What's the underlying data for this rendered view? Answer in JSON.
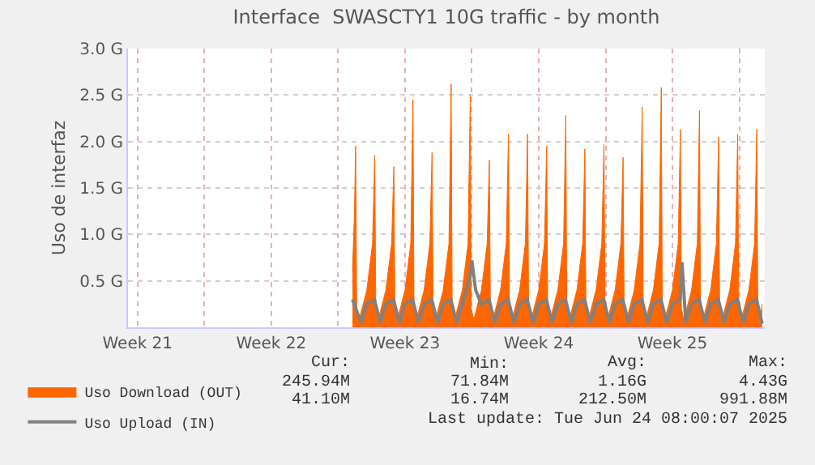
{
  "chart_data": {
    "type": "area",
    "title": "Interface  SWASCTY1 10G traffic - by month",
    "ylabel": "Uso de interfaz",
    "xlim": [
      "2025-05-22T00:00",
      "2025-06-24T08:00"
    ],
    "xticks": [
      {
        "value": "2025-05-22T12:00",
        "label": "Week 21"
      },
      {
        "value": "2025-05-26",
        "label": null
      },
      {
        "value": "2025-05-29T12:00",
        "label": "Week 22"
      },
      {
        "value": "2025-06-02",
        "label": null
      },
      {
        "value": "2025-06-05T12:00",
        "label": "Week 23"
      },
      {
        "value": "2025-06-09",
        "label": null
      },
      {
        "value": "2025-06-12T12:00",
        "label": "Week 24"
      },
      {
        "value": "2025-06-16",
        "label": null
      },
      {
        "value": "2025-06-19T12:00",
        "label": "Week 25"
      },
      {
        "value": "2025-06-23",
        "label": null
      }
    ],
    "ylim": [
      0,
      3.0
    ],
    "yticks": [
      {
        "value": 0.5,
        "label": "0.5 G"
      },
      {
        "value": 1.0,
        "label": "1.0 G"
      },
      {
        "value": 1.5,
        "label": "1.5 G"
      },
      {
        "value": 2.0,
        "label": "2.0 G"
      },
      {
        "value": 2.5,
        "label": "2.5 G"
      },
      {
        "value": 3.0,
        "label": "3.0 G"
      }
    ],
    "grid": true,
    "legend": "bottom left",
    "series": [
      {
        "name": "Uso Download (OUT)",
        "color": "#ff6600",
        "x": [
          "2025-06-02T18:00",
          "2025-06-02T20:24",
          "2025-06-02T22:00",
          "2025-06-02T23:17",
          "2025-06-03T02:24",
          "2025-06-03T12:00",
          "2025-06-03T19:12",
          "2025-06-03T22:00",
          "2025-06-03T23:17",
          "2025-06-04T02:24",
          "2025-06-04T12:00",
          "2025-06-04T19:12",
          "2025-06-04T22:00",
          "2025-06-04T23:17",
          "2025-06-05T02:24",
          "2025-06-05T12:00",
          "2025-06-05T19:12",
          "2025-06-05T22:00",
          "2025-06-05T23:17",
          "2025-06-06T02:24",
          "2025-06-06T12:00",
          "2025-06-06T19:12",
          "2025-06-06T22:00",
          "2025-06-06T23:17",
          "2025-06-07T02:24",
          "2025-06-07T12:00",
          "2025-06-07T19:12",
          "2025-06-07T22:00",
          "2025-06-07T23:17",
          "2025-06-08T02:24",
          "2025-06-08T12:00",
          "2025-06-08T19:12",
          "2025-06-08T22:00",
          "2025-06-08T23:17",
          "2025-06-09T02:24",
          "2025-06-09T12:00",
          "2025-06-09T19:12",
          "2025-06-09T22:00",
          "2025-06-09T23:17",
          "2025-06-10T02:24",
          "2025-06-10T12:00",
          "2025-06-10T19:12",
          "2025-06-10T22:00",
          "2025-06-10T23:17",
          "2025-06-11T02:24",
          "2025-06-11T12:00",
          "2025-06-11T19:12",
          "2025-06-11T22:00",
          "2025-06-11T23:17",
          "2025-06-12T02:24",
          "2025-06-12T12:00",
          "2025-06-12T19:12",
          "2025-06-12T22:00",
          "2025-06-12T23:17",
          "2025-06-13T02:24",
          "2025-06-13T12:00",
          "2025-06-13T19:12",
          "2025-06-13T22:00",
          "2025-06-13T23:17",
          "2025-06-14T02:24",
          "2025-06-14T12:00",
          "2025-06-14T19:12",
          "2025-06-14T22:00",
          "2025-06-14T23:17",
          "2025-06-15T02:24",
          "2025-06-15T12:00",
          "2025-06-15T19:12",
          "2025-06-15T22:00",
          "2025-06-15T23:17",
          "2025-06-16T02:24",
          "2025-06-16T12:00",
          "2025-06-16T19:12",
          "2025-06-16T22:00",
          "2025-06-16T23:17",
          "2025-06-17T02:24",
          "2025-06-17T12:00",
          "2025-06-17T19:12",
          "2025-06-17T22:00",
          "2025-06-17T23:17",
          "2025-06-18T02:24",
          "2025-06-18T12:00",
          "2025-06-18T19:12",
          "2025-06-18T22:00",
          "2025-06-18T23:17",
          "2025-06-19T02:24",
          "2025-06-19T12:00",
          "2025-06-19T19:12",
          "2025-06-19T22:00",
          "2025-06-19T23:17",
          "2025-06-20T02:24",
          "2025-06-20T12:00",
          "2025-06-20T19:12",
          "2025-06-20T22:00",
          "2025-06-20T23:17",
          "2025-06-21T02:24",
          "2025-06-21T12:00",
          "2025-06-21T19:12",
          "2025-06-21T22:00",
          "2025-06-21T23:17",
          "2025-06-22T02:24",
          "2025-06-22T12:00",
          "2025-06-22T19:12",
          "2025-06-22T22:00",
          "2025-06-22T23:17",
          "2025-06-23T02:24",
          "2025-06-23T12:00",
          "2025-06-23T19:12",
          "2025-06-23T22:00",
          "2025-06-23T23:17",
          "2025-06-24T02:24",
          "2025-06-24T04:48"
        ],
        "values": [
          0.6,
          1.2,
          1.95,
          0.2,
          0.08,
          0.4,
          0.9,
          1.85,
          0.2,
          0.08,
          0.4,
          0.9,
          1.73,
          0.2,
          0.08,
          0.4,
          0.9,
          2.45,
          0.2,
          0.08,
          0.4,
          0.9,
          1.88,
          0.2,
          0.08,
          0.4,
          0.9,
          2.62,
          0.2,
          0.08,
          0.4,
          0.9,
          2.5,
          0.2,
          0.08,
          0.4,
          0.9,
          1.8,
          0.2,
          0.08,
          0.4,
          0.9,
          2.08,
          0.2,
          0.08,
          0.4,
          0.9,
          2.08,
          0.2,
          0.08,
          0.4,
          0.9,
          1.95,
          0.2,
          0.08,
          0.4,
          0.9,
          2.28,
          0.2,
          0.08,
          0.4,
          0.9,
          1.92,
          0.2,
          0.08,
          0.4,
          0.9,
          1.97,
          0.2,
          0.08,
          0.4,
          0.9,
          1.83,
          0.2,
          0.08,
          0.4,
          0.9,
          2.37,
          0.2,
          0.08,
          0.4,
          0.9,
          2.58,
          0.2,
          0.08,
          0.4,
          0.9,
          2.13,
          0.2,
          0.08,
          0.4,
          0.9,
          2.33,
          0.2,
          0.08,
          0.4,
          0.9,
          2.05,
          0.2,
          0.08,
          0.4,
          0.9,
          2.08,
          0.2,
          0.08,
          0.4,
          0.9,
          2.13,
          0.2,
          0.1,
          0.25
        ]
      },
      {
        "name": "Uso Upload (IN)",
        "type": "line",
        "color": "#808080",
        "x": [
          "2025-06-02T18:00",
          "2025-06-03T04:48",
          "2025-06-03T12:00",
          "2025-06-03T21:36",
          "2025-06-04T04:48",
          "2025-06-04T12:00",
          "2025-06-04T21:36",
          "2025-06-05T04:48",
          "2025-06-05T12:00",
          "2025-06-05T21:36",
          "2025-06-06T04:48",
          "2025-06-06T12:00",
          "2025-06-06T21:36",
          "2025-06-07T04:48",
          "2025-06-07T12:00",
          "2025-06-07T21:36",
          "2025-06-08T04:48",
          "2025-06-08T12:00",
          "2025-06-08T21:36",
          "2025-06-09T00:00",
          "2025-06-09T04:48",
          "2025-06-09T12:00",
          "2025-06-09T21:36",
          "2025-06-10T04:48",
          "2025-06-10T12:00",
          "2025-06-10T21:36",
          "2025-06-11T04:48",
          "2025-06-11T12:00",
          "2025-06-11T21:36",
          "2025-06-12T04:48",
          "2025-06-12T12:00",
          "2025-06-12T21:36",
          "2025-06-13T04:48",
          "2025-06-13T12:00",
          "2025-06-13T21:36",
          "2025-06-14T04:48",
          "2025-06-14T12:00",
          "2025-06-14T21:36",
          "2025-06-15T04:48",
          "2025-06-15T12:00",
          "2025-06-15T21:36",
          "2025-06-16T04:48",
          "2025-06-16T12:00",
          "2025-06-16T21:36",
          "2025-06-17T04:48",
          "2025-06-17T12:00",
          "2025-06-17T21:36",
          "2025-06-18T04:48",
          "2025-06-18T12:00",
          "2025-06-18T21:36",
          "2025-06-19T04:48",
          "2025-06-19T12:00",
          "2025-06-19T21:36",
          "2025-06-20T00:00",
          "2025-06-20T04:48",
          "2025-06-20T12:00",
          "2025-06-20T21:36",
          "2025-06-21T04:48",
          "2025-06-21T12:00",
          "2025-06-21T21:36",
          "2025-06-22T04:48",
          "2025-06-22T12:00",
          "2025-06-22T21:36",
          "2025-06-23T04:48",
          "2025-06-23T12:00",
          "2025-06-23T21:36",
          "2025-06-24T04:48"
        ],
        "values": [
          0.3,
          0.05,
          0.25,
          0.3,
          0.05,
          0.25,
          0.3,
          0.05,
          0.25,
          0.3,
          0.05,
          0.25,
          0.3,
          0.05,
          0.25,
          0.3,
          0.05,
          0.25,
          0.55,
          0.72,
          0.4,
          0.25,
          0.3,
          0.05,
          0.25,
          0.3,
          0.05,
          0.25,
          0.3,
          0.05,
          0.25,
          0.3,
          0.05,
          0.25,
          0.3,
          0.05,
          0.25,
          0.3,
          0.05,
          0.25,
          0.3,
          0.05,
          0.25,
          0.3,
          0.05,
          0.25,
          0.3,
          0.05,
          0.25,
          0.3,
          0.05,
          0.25,
          0.3,
          0.7,
          0.05,
          0.25,
          0.3,
          0.05,
          0.25,
          0.3,
          0.05,
          0.25,
          0.3,
          0.05,
          0.25,
          0.3,
          0.04
        ]
      }
    ],
    "annotations": [
      "Cur:",
      "Min:",
      "Avg:",
      "Max:",
      "245.94M",
      "71.84M",
      "1.16G",
      "4.43G",
      "41.10M",
      "16.74M",
      "212.50M",
      "991.88M",
      "Last update: Tue Jun 24 08:00:07 2025"
    ]
  }
}
